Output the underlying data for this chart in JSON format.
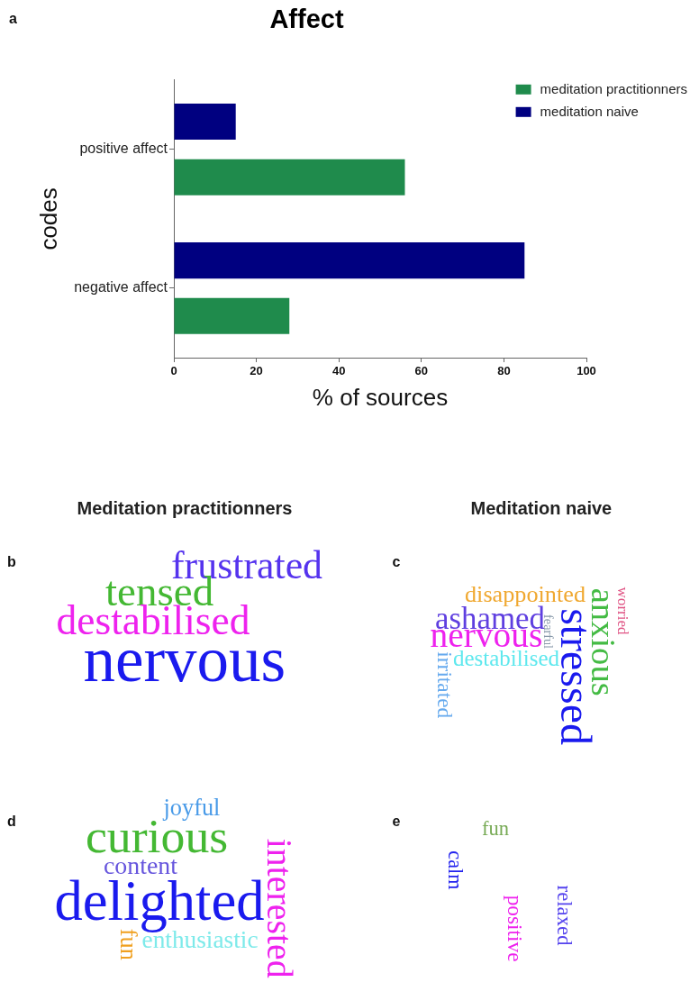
{
  "chart_data": [
    {
      "type": "bar",
      "title": "Affect",
      "xlabel": "% of sources",
      "ylabel": "codes",
      "orientation": "horizontal",
      "categories": [
        "positive affect",
        "negative affect"
      ],
      "series": [
        {
          "name": "meditation practitionners",
          "color": "#1f8b4c",
          "values": [
            56,
            28
          ]
        },
        {
          "name": "meditation naive",
          "color": "#000080",
          "values": [
            15,
            85
          ]
        }
      ],
      "xlim": [
        0,
        100
      ],
      "xticks": [
        0,
        20,
        40,
        60,
        80,
        100
      ],
      "grid": false,
      "legend": "top right",
      "annotations": [
        "a"
      ]
    },
    {
      "type": "other",
      "title": "Meditation practitionners",
      "annotations": [
        "b",
        "frustrated",
        "tensed",
        "destabilised",
        "nervous"
      ]
    },
    {
      "type": "other",
      "title": "Meditation naive",
      "annotations": [
        "c",
        "disappointed",
        "ashamed",
        "nervous",
        "destabilised",
        "irritated",
        "fearful",
        "stressed",
        "anxious",
        "worried"
      ]
    },
    {
      "type": "other",
      "annotations": [
        "d",
        "joyful",
        "curious",
        "content",
        "delighted",
        "enthusiastic",
        "fun",
        "interested"
      ]
    },
    {
      "type": "other",
      "annotations": [
        "e",
        "fun",
        "calm",
        "positive",
        "relaxed"
      ]
    }
  ]
}
